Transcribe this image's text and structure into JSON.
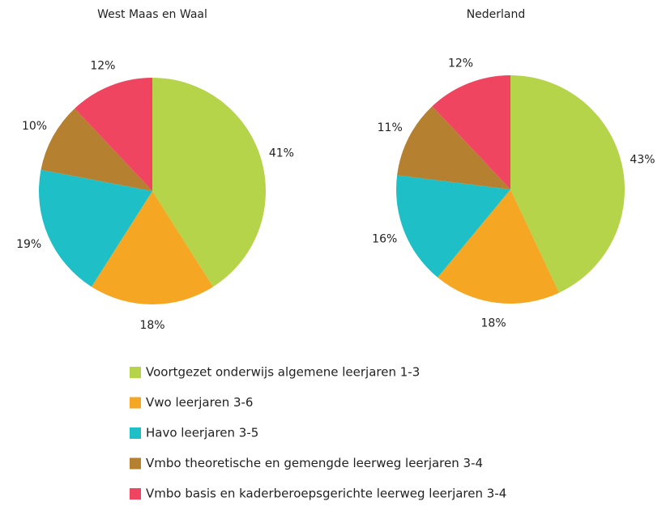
{
  "legend": {
    "labels": [
      "Voortgezet onderwijs algemene leerjaren 1-3",
      "Vwo leerjaren 3-6",
      "Havo leerjaren 3-5",
      "Vmbo theoretische en gemengde leerweg leerjaren 3-4",
      "Vmbo basis en kaderberoepsgerichte leerweg leerjaren 3-4"
    ],
    "colors": [
      "#b5d44a",
      "#f5a623",
      "#1fbfc8",
      "#b5802f",
      "#ef4560"
    ]
  },
  "chart_data": [
    {
      "type": "pie",
      "title": "West Maas en Waal",
      "values": [
        41,
        18,
        19,
        10,
        12
      ],
      "value_labels": [
        "41%",
        "18%",
        "19%",
        "10%",
        "12%"
      ]
    },
    {
      "type": "pie",
      "title": "Nederland",
      "values": [
        43,
        18,
        16,
        11,
        12
      ],
      "value_labels": [
        "43%",
        "18%",
        "16%",
        "11%",
        "12%"
      ]
    }
  ]
}
